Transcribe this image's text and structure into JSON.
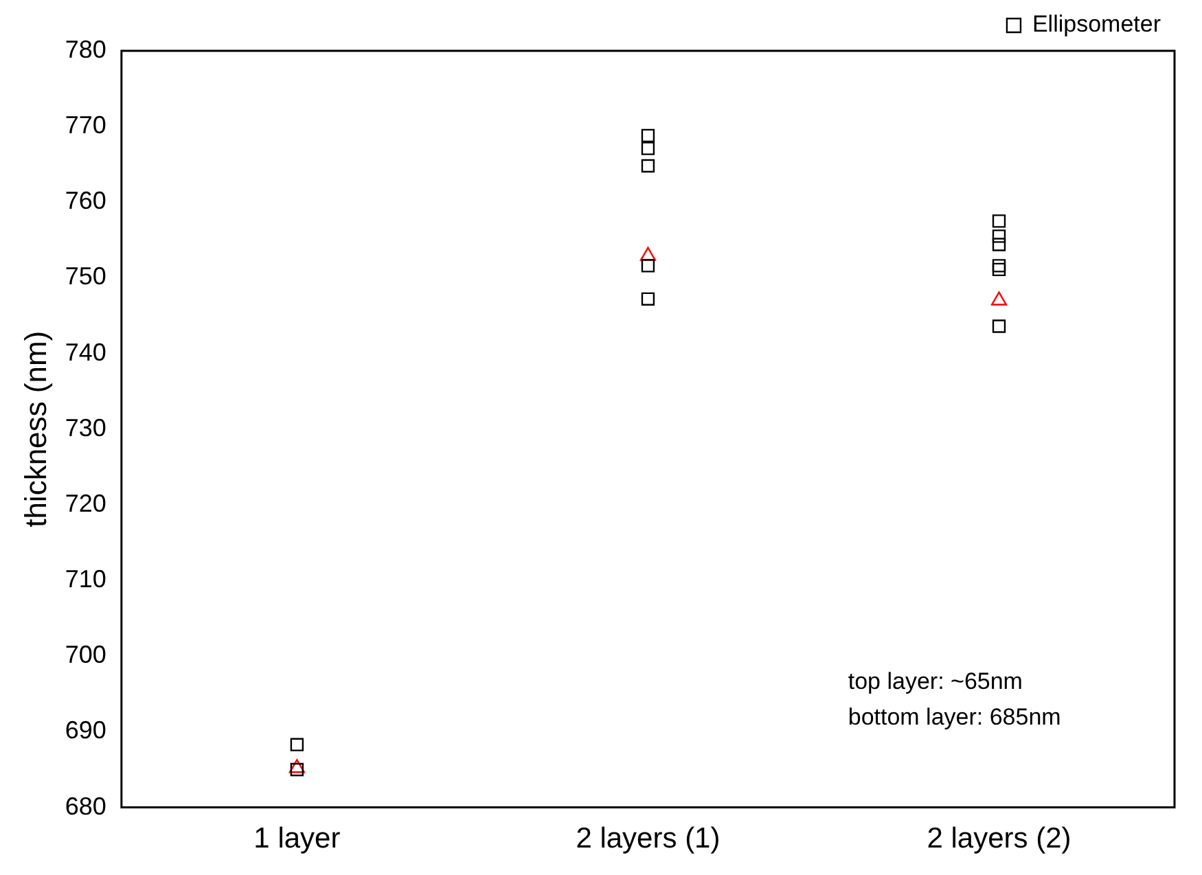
{
  "chart_data": {
    "type": "scatter",
    "ylabel": "thickness (nm)",
    "categories": [
      "1 layer",
      "2 layers (1)",
      "2 layers (2)"
    ],
    "ylim": [
      680,
      780
    ],
    "yticks": [
      680,
      690,
      700,
      710,
      720,
      730,
      740,
      750,
      760,
      770,
      780
    ],
    "grid": false,
    "legend": "top right",
    "series": [
      {
        "name": "Ellipsometer",
        "color": "#000000",
        "marker": "square",
        "x": [
          "1 layer",
          "1 layer",
          "2 layers (1)",
          "2 layers (1)",
          "2 layers (1)",
          "2 layers (1)",
          "2 layers (1)",
          "2 layers (2)",
          "2 layers (2)",
          "2 layers (2)",
          "2 layers (2)",
          "2 layers (2)",
          "2 layers (2)"
        ],
        "values": [
          688.3,
          685.0,
          768.8,
          767.1,
          764.8,
          751.6,
          747.2,
          757.5,
          755.5,
          754.4,
          751.6,
          751.1,
          743.6
        ]
      },
      {
        "color": "#ff0000",
        "marker": "triangle",
        "x": [
          "1 layer",
          "2 layers (1)",
          "2 layers (2)"
        ],
        "values": [
          685.2,
          752.9,
          747.0
        ]
      }
    ],
    "annotations": [
      "top layer: ~65nm",
      "bottom layer: 685nm"
    ]
  }
}
